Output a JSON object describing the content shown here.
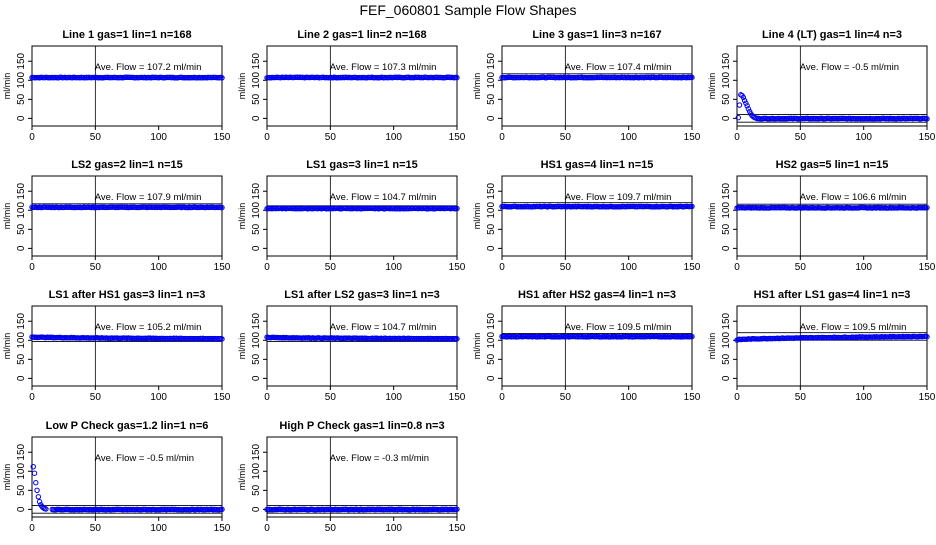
{
  "figure_title": "FEF_060801  Sample Flow Shapes",
  "colors": {
    "points": "#0000ee",
    "axes": "#000000",
    "background": "#ffffff"
  },
  "chart_data": [
    {
      "type": "scatter",
      "title": "Line 1 gas=1 lin=1 n=168",
      "annotation": "Ave. Flow =  107.2  ml/min",
      "ylabel": "ml/min",
      "xlim": [
        0,
        150
      ],
      "ylim": [
        -20,
        190
      ],
      "xticks": [
        0,
        50,
        100,
        150
      ],
      "yticks": [
        0,
        50,
        100,
        150
      ],
      "hlines": [
        107.2
      ],
      "vlines": [
        50
      ],
      "shape": "flat",
      "level": 107.2
    },
    {
      "type": "scatter",
      "title": "Line 2 gas=1 lin=2 n=168",
      "annotation": "Ave. Flow =  107.3  ml/min",
      "ylabel": "ml/min",
      "xlim": [
        0,
        150
      ],
      "ylim": [
        -20,
        190
      ],
      "xticks": [
        0,
        50,
        100,
        150
      ],
      "yticks": [
        0,
        50,
        100,
        150
      ],
      "hlines": [
        107.3
      ],
      "vlines": [
        50
      ],
      "shape": "flat",
      "level": 107.3
    },
    {
      "type": "scatter",
      "title": "Line 3 gas=1 lin=3 n=167",
      "annotation": "Ave. Flow =  107.4  ml/min",
      "ylabel": "ml/min",
      "xlim": [
        0,
        150
      ],
      "ylim": [
        -20,
        190
      ],
      "xticks": [
        0,
        50,
        100,
        150
      ],
      "yticks": [
        0,
        50,
        100,
        150
      ],
      "hlines": [
        107.4,
        117
      ],
      "vlines": [
        50
      ],
      "shape": "flat",
      "level": 107.4
    },
    {
      "type": "scatter",
      "title": "Line 4 (LT) gas=1 lin=4 n=3",
      "annotation": "Ave. Flow =  -0.5  ml/min",
      "ylabel": "ml/min",
      "xlim": [
        0,
        150
      ],
      "ylim": [
        -20,
        190
      ],
      "xticks": [
        0,
        50,
        100,
        150
      ],
      "yticks": [
        0,
        50,
        100,
        150
      ],
      "hlines": [
        -10,
        10
      ],
      "vlines": [
        50
      ],
      "shape": "spike",
      "level": -0.5,
      "spike_points": [
        [
          1,
          2
        ],
        [
          2,
          35
        ],
        [
          3,
          62
        ],
        [
          4,
          60
        ],
        [
          5,
          55
        ],
        [
          6,
          47
        ],
        [
          7,
          40
        ],
        [
          8,
          33
        ],
        [
          9,
          25
        ],
        [
          10,
          18
        ],
        [
          11,
          12
        ],
        [
          12,
          7
        ],
        [
          13,
          4
        ],
        [
          14,
          2
        ],
        [
          15,
          1
        ]
      ]
    },
    {
      "type": "scatter",
      "title": "LS2 gas=2 lin=1 n=15",
      "annotation": "Ave. Flow =  107.9  ml/min",
      "ylabel": "ml/min",
      "xlim": [
        0,
        150
      ],
      "ylim": [
        -20,
        190
      ],
      "xticks": [
        0,
        50,
        100,
        150
      ],
      "yticks": [
        0,
        50,
        100,
        150
      ],
      "hlines": [
        107.9,
        117
      ],
      "vlines": [
        50
      ],
      "shape": "flat",
      "level": 107.9
    },
    {
      "type": "scatter",
      "title": "LS1 gas=3 lin=1 n=15",
      "annotation": "Ave. Flow =  104.7  ml/min",
      "ylabel": "ml/min",
      "xlim": [
        0,
        150
      ],
      "ylim": [
        -20,
        190
      ],
      "xticks": [
        0,
        50,
        100,
        150
      ],
      "yticks": [
        0,
        50,
        100,
        150
      ],
      "hlines": [
        104.7,
        112
      ],
      "vlines": [
        50
      ],
      "shape": "flat",
      "level": 104.7
    },
    {
      "type": "scatter",
      "title": "HS1 gas=4 lin=1 n=15",
      "annotation": "Ave. Flow =  109.7  ml/min",
      "ylabel": "ml/min",
      "xlim": [
        0,
        150
      ],
      "ylim": [
        -20,
        190
      ],
      "xticks": [
        0,
        50,
        100,
        150
      ],
      "yticks": [
        0,
        50,
        100,
        150
      ],
      "hlines": [
        109.7,
        120
      ],
      "vlines": [
        50
      ],
      "shape": "flat",
      "level": 109.7
    },
    {
      "type": "scatter",
      "title": "HS2 gas=5 lin=1 n=15",
      "annotation": "Ave. Flow =  106.6  ml/min",
      "ylabel": "ml/min",
      "xlim": [
        0,
        150
      ],
      "ylim": [
        -20,
        190
      ],
      "xticks": [
        0,
        50,
        100,
        150
      ],
      "yticks": [
        0,
        50,
        100,
        150
      ],
      "hlines": [
        106.6,
        116
      ],
      "vlines": [
        50
      ],
      "shape": "flat",
      "level": 106.6
    },
    {
      "type": "scatter",
      "title": "LS1 after HS1 gas=3 lin=1 n=3",
      "annotation": "Ave. Flow =  105.2  ml/min",
      "ylabel": "ml/min",
      "xlim": [
        0,
        150
      ],
      "ylim": [
        -20,
        190
      ],
      "xticks": [
        0,
        50,
        100,
        150
      ],
      "yticks": [
        0,
        50,
        100,
        150
      ],
      "hlines": [
        97,
        110
      ],
      "vlines": [
        50
      ],
      "shape": "decline",
      "level": 105.2,
      "start": 109,
      "end": 104
    },
    {
      "type": "scatter",
      "title": "LS1 after LS2 gas=3 lin=1 n=3",
      "annotation": "Ave. Flow =  104.7  ml/min",
      "ylabel": "ml/min",
      "xlim": [
        0,
        150
      ],
      "ylim": [
        -20,
        190
      ],
      "xticks": [
        0,
        50,
        100,
        150
      ],
      "yticks": [
        0,
        50,
        100,
        150
      ],
      "hlines": [
        97,
        110
      ],
      "vlines": [
        50
      ],
      "shape": "decline",
      "level": 104.7,
      "start": 108,
      "end": 104
    },
    {
      "type": "scatter",
      "title": "HS1 after HS2 gas=4 lin=1 n=3",
      "annotation": "Ave. Flow =  109.5  ml/min",
      "ylabel": "ml/min",
      "xlim": [
        0,
        150
      ],
      "ylim": [
        -20,
        190
      ],
      "xticks": [
        0,
        50,
        100,
        150
      ],
      "yticks": [
        0,
        50,
        100,
        150
      ],
      "hlines": [
        109.5,
        118
      ],
      "vlines": [
        50
      ],
      "shape": "flat",
      "level": 109.5
    },
    {
      "type": "scatter",
      "title": "HS1 after LS1 gas=4 lin=1 n=3",
      "annotation": "Ave. Flow =  109.5  ml/min",
      "ylabel": "ml/min",
      "xlim": [
        0,
        150
      ],
      "ylim": [
        -20,
        190
      ],
      "xticks": [
        0,
        50,
        100,
        150
      ],
      "yticks": [
        0,
        50,
        100,
        150
      ],
      "hlines": [
        100,
        120
      ],
      "vlines": [
        50
      ],
      "shape": "rise",
      "level": 109.5,
      "start": 101,
      "end": 110
    },
    {
      "type": "scatter",
      "title": "Low P Check gas=1.2 lin=1 n=6",
      "annotation": "Ave. Flow =  -0.5  ml/min",
      "ylabel": "ml/min",
      "xlim": [
        0,
        150
      ],
      "ylim": [
        -20,
        190
      ],
      "xticks": [
        0,
        50,
        100,
        150
      ],
      "yticks": [
        0,
        50,
        100,
        150
      ],
      "hlines": [
        -10,
        10
      ],
      "vlines": [
        50
      ],
      "shape": "spike",
      "level": -0.5,
      "spike_points": [
        [
          1,
          112
        ],
        [
          2,
          95
        ],
        [
          3,
          70
        ],
        [
          4,
          50
        ],
        [
          5,
          33
        ],
        [
          6,
          20
        ],
        [
          7,
          12
        ],
        [
          8,
          7
        ],
        [
          9,
          4
        ],
        [
          10,
          2
        ],
        [
          11,
          1
        ]
      ]
    },
    {
      "type": "scatter",
      "title": "High P Check gas=1 lin=0.8 n=3",
      "annotation": "Ave. Flow =  -0.3  ml/min",
      "ylabel": "ml/min",
      "xlim": [
        0,
        150
      ],
      "ylim": [
        -20,
        190
      ],
      "xticks": [
        0,
        50,
        100,
        150
      ],
      "yticks": [
        0,
        50,
        100,
        150
      ],
      "hlines": [
        -10,
        10
      ],
      "vlines": [
        50
      ],
      "shape": "flat",
      "level": -0.3
    }
  ]
}
